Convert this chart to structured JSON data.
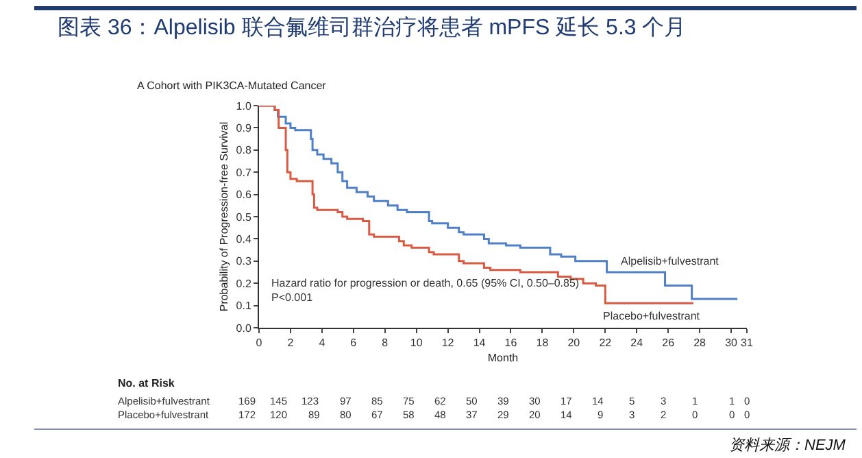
{
  "chart_data": {
    "type": "step",
    "title": "图表 36：Alpelisib 联合氟维司群治疗将患者 mPFS 延长 5.3 个月",
    "subtitle": "A Cohort with PIK3CA-Mutated Cancer",
    "xlabel": "Month",
    "ylabel": "Probability of Progression-free Survival",
    "series": [
      {
        "name": "Alpelisib+fulvestrant",
        "color": "#4f7fc7",
        "x": [
          0,
          1,
          1.2,
          1.7,
          2,
          2.3,
          3.3,
          3.4,
          3.7,
          4.1,
          4.6,
          5,
          5.3,
          5.6,
          6.2,
          6.9,
          7.3,
          8.2,
          8.8,
          9.4,
          10.8,
          11,
          12,
          12.7,
          13,
          14.3,
          14.6,
          15.7,
          16.6,
          17.5,
          18.5,
          19.2,
          20.1,
          22.1,
          25.8,
          27.5,
          30.4
        ],
        "values": [
          1,
          0.98,
          0.95,
          0.92,
          0.9,
          0.89,
          0.85,
          0.8,
          0.78,
          0.76,
          0.74,
          0.7,
          0.66,
          0.63,
          0.61,
          0.59,
          0.57,
          0.55,
          0.53,
          0.52,
          0.48,
          0.47,
          0.45,
          0.43,
          0.42,
          0.4,
          0.38,
          0.37,
          0.36,
          0.36,
          0.33,
          0.32,
          0.3,
          0.25,
          0.19,
          0.13,
          0.13
        ]
      },
      {
        "name": "Placebo+fulvestrant",
        "color": "#d95a43",
        "x": [
          0,
          1,
          1.25,
          1.7,
          1.8,
          2,
          2.4,
          3.4,
          3.5,
          3.7,
          5,
          5.3,
          5.6,
          6.6,
          7,
          7.3,
          8.9,
          9.2,
          9.7,
          10.8,
          11.1,
          12.7,
          13,
          14.3,
          14.7,
          16.6,
          19,
          19.8,
          20.6,
          21.4,
          22,
          22.1,
          27.6
        ],
        "values": [
          1,
          0.98,
          0.9,
          0.8,
          0.7,
          0.67,
          0.66,
          0.6,
          0.54,
          0.53,
          0.52,
          0.5,
          0.49,
          0.48,
          0.42,
          0.41,
          0.39,
          0.37,
          0.36,
          0.34,
          0.33,
          0.3,
          0.29,
          0.27,
          0.26,
          0.25,
          0.23,
          0.22,
          0.2,
          0.19,
          0.11,
          0.11,
          0.11
        ]
      }
    ],
    "xlim": [
      0,
      31
    ],
    "xticks": [
      0,
      2,
      4,
      6,
      8,
      10,
      12,
      14,
      16,
      18,
      20,
      22,
      24,
      26,
      28,
      30,
      31
    ],
    "ylim": [
      0,
      1
    ],
    "yticks": [
      {
        "value": 0,
        "label": "0.0"
      },
      0.1,
      0.2,
      0.3,
      0.4,
      0.5,
      0.6,
      0.7,
      0.8,
      0.9,
      {
        "value": 1,
        "label": "1.0"
      }
    ],
    "marker": "none",
    "line_style": "solid",
    "annotations": [
      "Hazard ratio for progression or death, 0.65 (95% CI, 0.50–0.85)\nP<0.001",
      "No. at Risk",
      "Alpelisib+fulvestrant 169 145 123 97 85 75 62 50 39 30 17 14 5 3 1 1 0",
      "Placebo+fulvestrant 172 120 89 80 67 58 48 37 29 20 14 9 3 2 0 0 0",
      "资料来源：NEJM"
    ]
  }
}
